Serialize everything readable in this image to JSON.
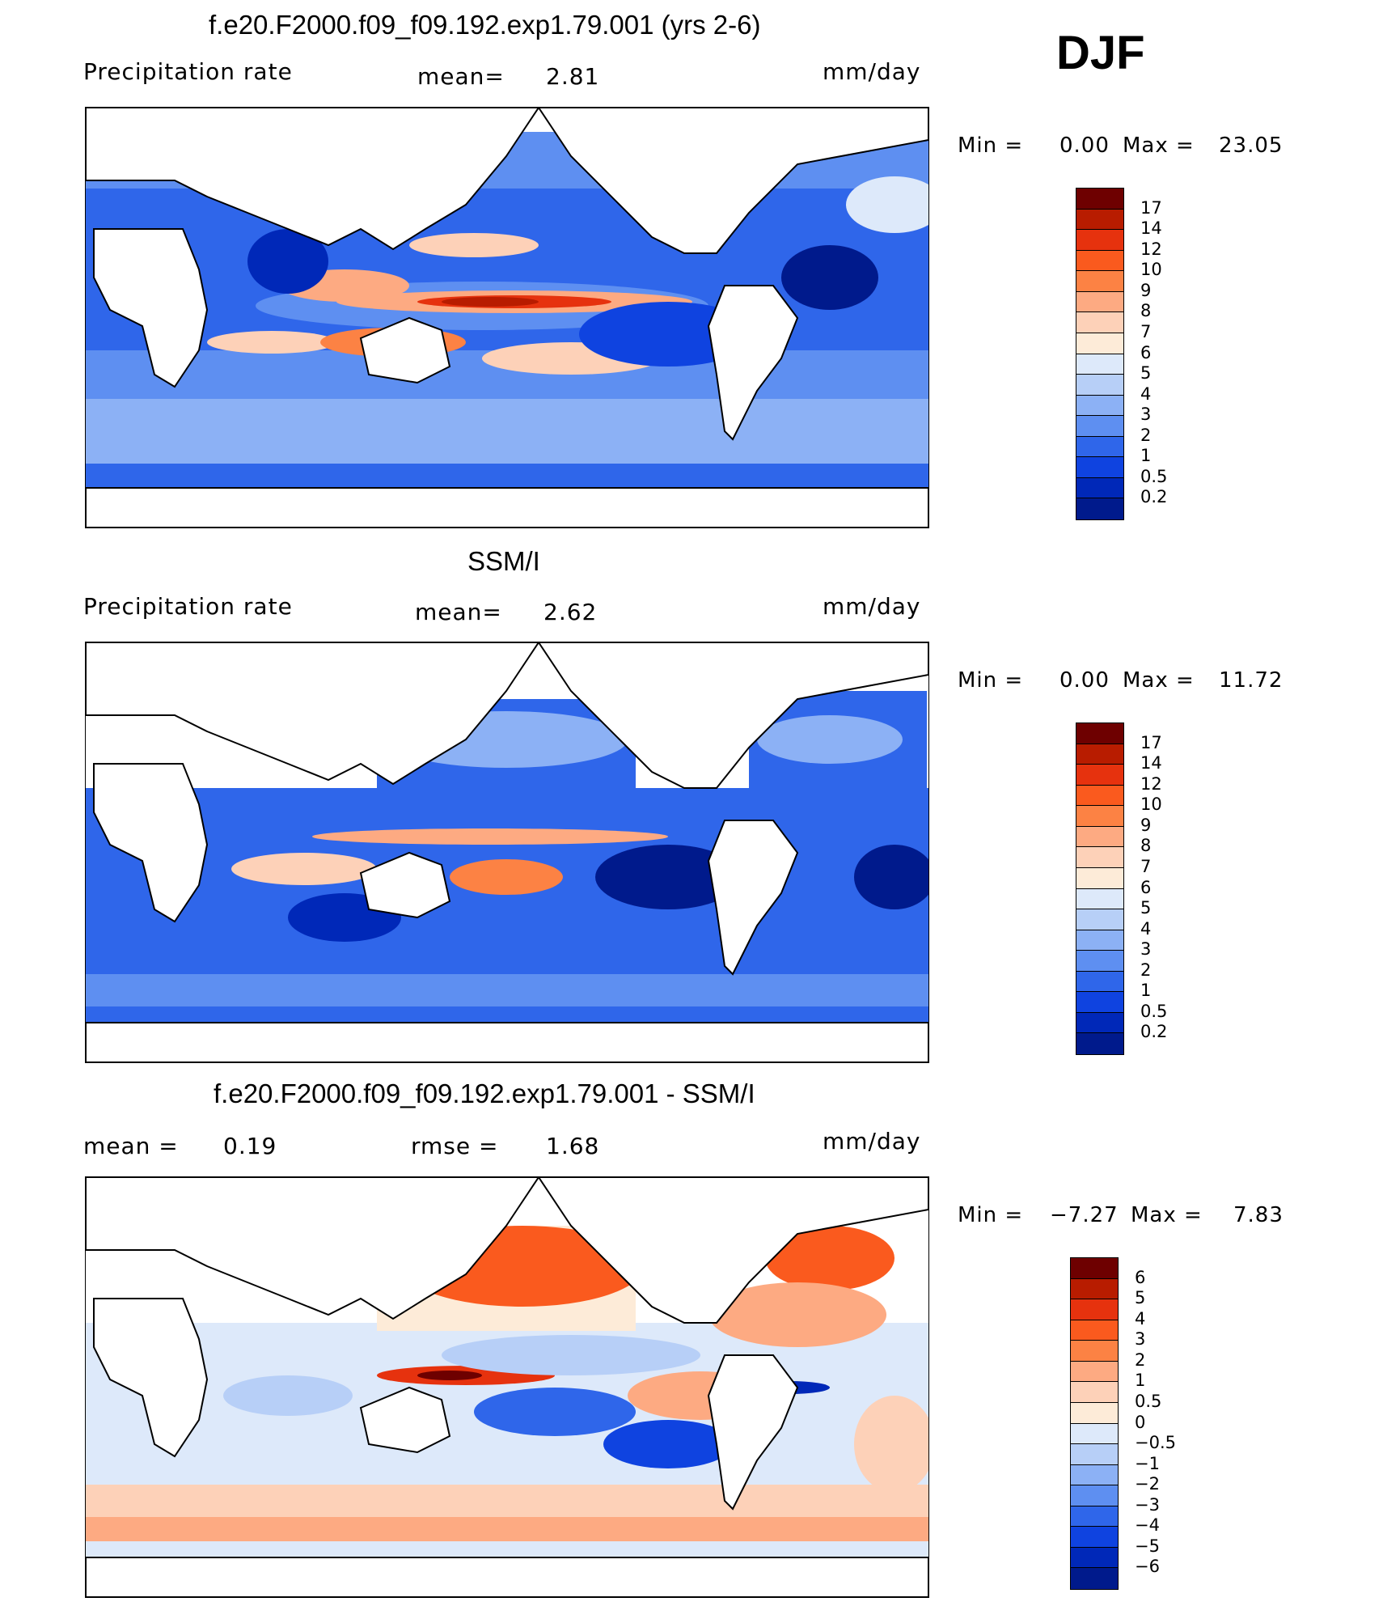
{
  "season": "DJF",
  "panels": [
    {
      "id": "model",
      "title": "f.e20.F2000.f09_f09.192.exp1.79.001 (yrs 2-6)",
      "left_label": "Precipitation  rate",
      "mid_label": "mean=",
      "mid_value": "2.81",
      "units": "mm/day",
      "min_label": "Min  =",
      "min_value": "0.00",
      "max_label": "Max  =",
      "max_value": "23.05",
      "levels": [
        "17",
        "14",
        "12",
        "10",
        "9",
        "8",
        "7",
        "6",
        "5",
        "4",
        "3",
        "2",
        "1",
        "0.5",
        "0.2"
      ],
      "colors": [
        "#6e0000",
        "#b81c00",
        "#e6320e",
        "#fa5a1e",
        "#fc8244",
        "#fdaa82",
        "#fdd1b8",
        "#fdebd8",
        "#dde9fa",
        "#b7cff7",
        "#8cb1f5",
        "#5e8ff1",
        "#2f66ea",
        "#0f43e0",
        "#0028b8",
        "#001a8c"
      ]
    },
    {
      "id": "obs",
      "title": "SSM/I",
      "left_label": "Precipitation  rate",
      "mid_label": "mean=",
      "mid_value": "2.62",
      "units": "mm/day",
      "min_label": "Min  =",
      "min_value": "0.00",
      "max_label": "Max  =",
      "max_value": "11.72",
      "levels": [
        "17",
        "14",
        "12",
        "10",
        "9",
        "8",
        "7",
        "6",
        "5",
        "4",
        "3",
        "2",
        "1",
        "0.5",
        "0.2"
      ],
      "colors": [
        "#6e0000",
        "#b81c00",
        "#e6320e",
        "#fa5a1e",
        "#fc8244",
        "#fdaa82",
        "#fdd1b8",
        "#fdebd8",
        "#dde9fa",
        "#b7cff7",
        "#8cb1f5",
        "#5e8ff1",
        "#2f66ea",
        "#0f43e0",
        "#0028b8",
        "#001a8c"
      ]
    },
    {
      "id": "diff",
      "title": "f.e20.F2000.f09_f09.192.exp1.79.001 - SSM/I",
      "left_label": "mean  =",
      "left_value": "0.19",
      "mid_label": "rmse  =",
      "mid_value": "1.68",
      "units": "mm/day",
      "min_label": "Min  =",
      "min_value": "−7.27",
      "max_label": "Max  =",
      "max_value": "7.83",
      "levels": [
        "6",
        "5",
        "4",
        "3",
        "2",
        "1",
        "0.5",
        "0",
        "−0.5",
        "−1",
        "−2",
        "−3",
        "−4",
        "−5",
        "−6"
      ],
      "colors": [
        "#6e0000",
        "#b81c00",
        "#e6320e",
        "#fa5a1e",
        "#fc8244",
        "#fdaa82",
        "#fdd1b8",
        "#fdebd8",
        "#dde9fa",
        "#b7cff7",
        "#8cb1f5",
        "#5e8ff1",
        "#2f66ea",
        "#0f43e0",
        "#0028b8",
        "#001a8c"
      ]
    }
  ],
  "chart_data": [
    {
      "type": "heatmap",
      "title": "f.e20.F2000.f09_f09.192.exp1.79.001 (yrs 2-6)",
      "variable": "Precipitation  rate",
      "units": "mm/day",
      "mean": 2.81,
      "min": 0.0,
      "max": 23.05,
      "colorbar_levels": [
        17,
        14,
        12,
        10,
        9,
        8,
        7,
        6,
        5,
        4,
        3,
        2,
        1,
        0.5,
        0.2
      ]
    },
    {
      "type": "heatmap",
      "title": "SSM/I",
      "variable": "Precipitation  rate",
      "units": "mm/day",
      "mean": 2.62,
      "min": 0.0,
      "max": 11.72,
      "colorbar_levels": [
        17,
        14,
        12,
        10,
        9,
        8,
        7,
        6,
        5,
        4,
        3,
        2,
        1,
        0.5,
        0.2
      ]
    },
    {
      "type": "heatmap",
      "title": "f.e20.F2000.f09_f09.192.exp1.79.001 - SSM/I",
      "units": "mm/day",
      "mean": 0.19,
      "rmse": 1.68,
      "min": -7.27,
      "max": 7.83,
      "colorbar_levels": [
        6,
        5,
        4,
        3,
        2,
        1,
        0.5,
        0,
        -0.5,
        -1,
        -2,
        -3,
        -4,
        -5,
        -6
      ]
    }
  ]
}
